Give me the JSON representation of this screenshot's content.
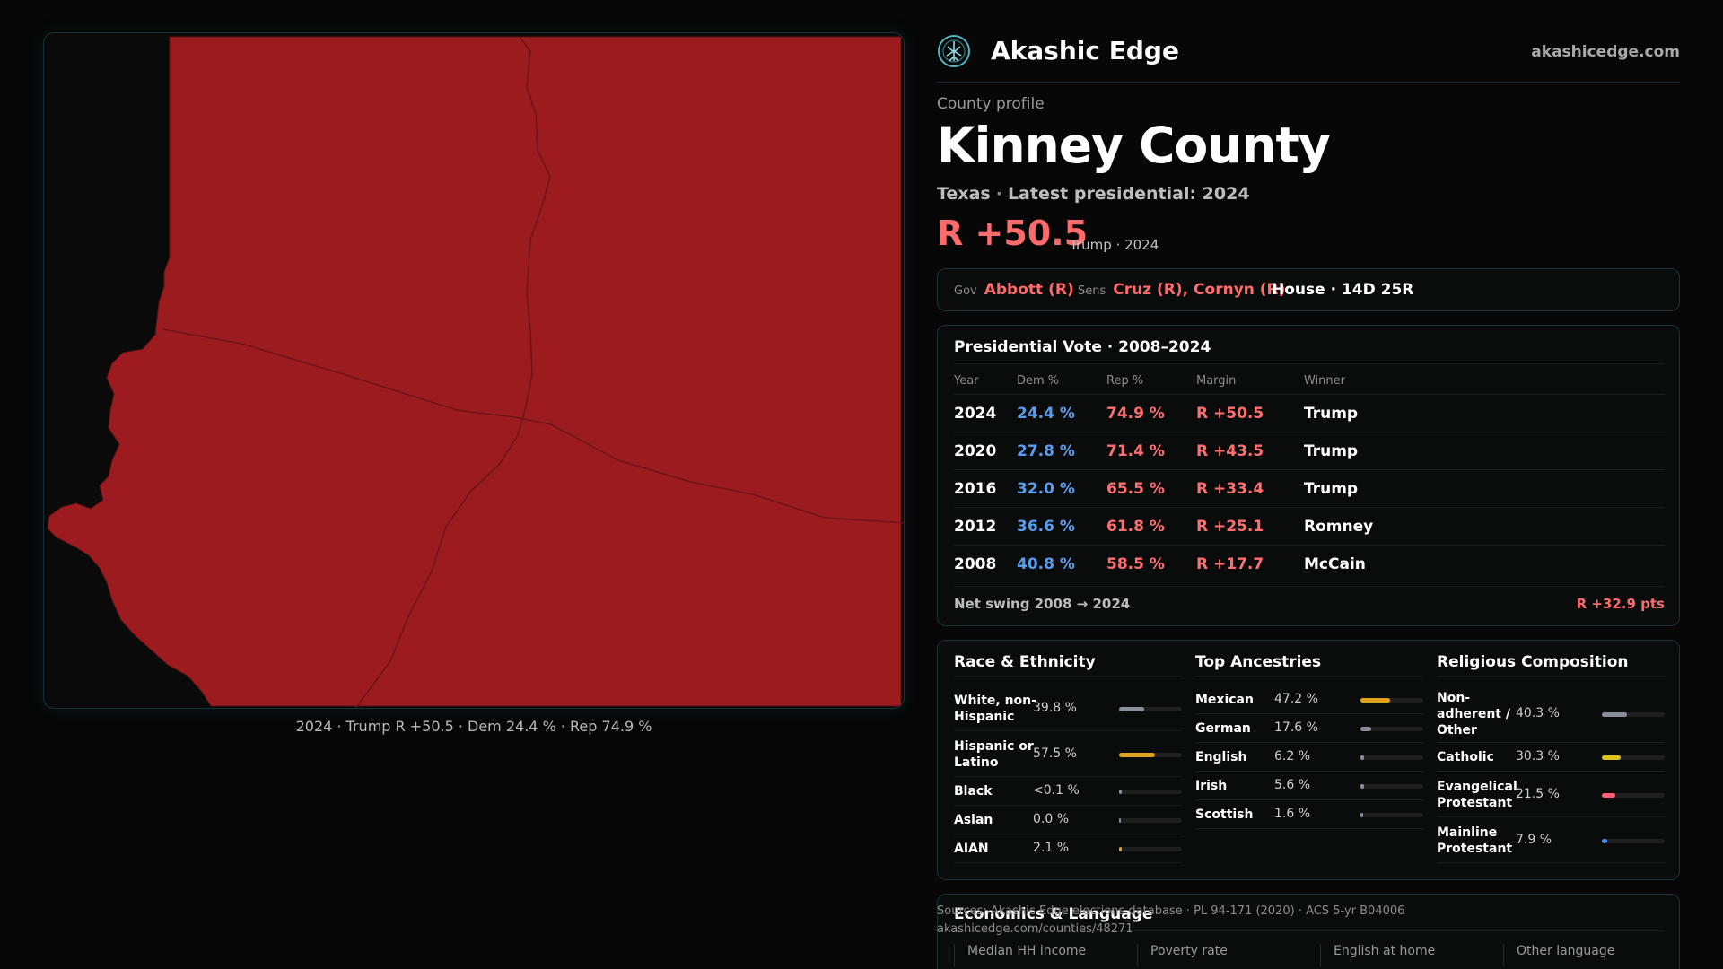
{
  "map": {
    "fill_color": "#9b1b1f",
    "caption": "2024 · Trump R +50.5 · Dem 24.4 % · Rep 74.9 %"
  },
  "brand": {
    "name": "Akashic Edge",
    "url": "akashicedge.com",
    "logo_icon": "tree-of-life-icon"
  },
  "profile": {
    "label": "County profile",
    "county": "Kinney County",
    "state": "Texas",
    "latest": "Latest presidential: 2024",
    "margin": "R +50.5",
    "margin_note": "Trump · 2024"
  },
  "officials": {
    "gov_tag": "Gov",
    "gov": "Abbott (R)",
    "sens_tag": "Sens",
    "sens": "Cruz (R), Cornyn (R)",
    "house": "House · 14D 25R"
  },
  "votes": {
    "title": "Presidential Vote · 2008–2024",
    "headers": [
      "Year",
      "Dem %",
      "Rep %",
      "Margin",
      "Winner"
    ],
    "rows": [
      {
        "year": "2024",
        "dem": "24.4 %",
        "rep": "74.9 %",
        "margin": "R +50.5",
        "winner": "Trump"
      },
      {
        "year": "2020",
        "dem": "27.8 %",
        "rep": "71.4 %",
        "margin": "R +43.5",
        "winner": "Trump"
      },
      {
        "year": "2016",
        "dem": "32.0 %",
        "rep": "65.5 %",
        "margin": "R +33.4",
        "winner": "Trump"
      },
      {
        "year": "2012",
        "dem": "36.6 %",
        "rep": "61.8 %",
        "margin": "R +25.1",
        "winner": "Romney"
      },
      {
        "year": "2008",
        "dem": "40.8 %",
        "rep": "58.5 %",
        "margin": "R +17.7",
        "winner": "McCain"
      }
    ],
    "swing_label": "Net swing 2008 → 2024",
    "swing_value": "R +32.9 pts"
  },
  "race": {
    "title": "Race & Ethnicity",
    "rows": [
      {
        "label": "White, non-\nHispanic",
        "pct": "39.8 %",
        "level": 0.398,
        "color": "#8a8f99"
      },
      {
        "label": "Hispanic or\nLatino",
        "pct": "57.5 %",
        "level": 0.575,
        "color": "#e0a21b"
      },
      {
        "label": "Black",
        "pct": "<0.1 %",
        "level": 0.001,
        "color": "#8a8f99"
      },
      {
        "label": "Asian",
        "pct": "0.0 %",
        "level": 0.0,
        "color": "#8a8f99"
      },
      {
        "label": "AIAN",
        "pct": "2.1 %",
        "level": 0.021,
        "color": "#e0a21b"
      }
    ]
  },
  "ancestry": {
    "title": "Top Ancestries",
    "rows": [
      {
        "label": "Mexican",
        "pct": "47.2 %",
        "level": 0.472,
        "color": "#e0a21b"
      },
      {
        "label": "German",
        "pct": "17.6 %",
        "level": 0.176,
        "color": "#8a8f99"
      },
      {
        "label": "English",
        "pct": "6.2 %",
        "level": 0.062,
        "color": "#8a8f99"
      },
      {
        "label": "Irish",
        "pct": "5.6 %",
        "level": 0.056,
        "color": "#8a8f99"
      },
      {
        "label": "Scottish",
        "pct": "1.6 %",
        "level": 0.016,
        "color": "#8a8f99"
      }
    ]
  },
  "religion": {
    "title": "Religious Composition",
    "rows": [
      {
        "label": "Non-\nadherent /\nOther",
        "pct": "40.3 %",
        "level": 0.403,
        "color": "#8a8f99"
      },
      {
        "label": "Catholic",
        "pct": "30.3 %",
        "level": 0.303,
        "color": "#e0c21b"
      },
      {
        "label": "Evangelical\nProtestant",
        "pct": "21.5 %",
        "level": 0.215,
        "color": "#ff5f6d"
      },
      {
        "label": "Mainline\nProtestant",
        "pct": "7.9 %",
        "level": 0.079,
        "color": "#4f8ff0"
      }
    ]
  },
  "econ": {
    "title": "Economics & Language",
    "headers": [
      "Median HH income",
      "Poverty rate",
      "English at home",
      "Other language"
    ]
  },
  "sources": {
    "line1": "Sources: Akashic Edge elections database · PL 94-171 (2020) · ACS 5-yr B04006",
    "line2": "akashicedge.com/counties/48271"
  }
}
